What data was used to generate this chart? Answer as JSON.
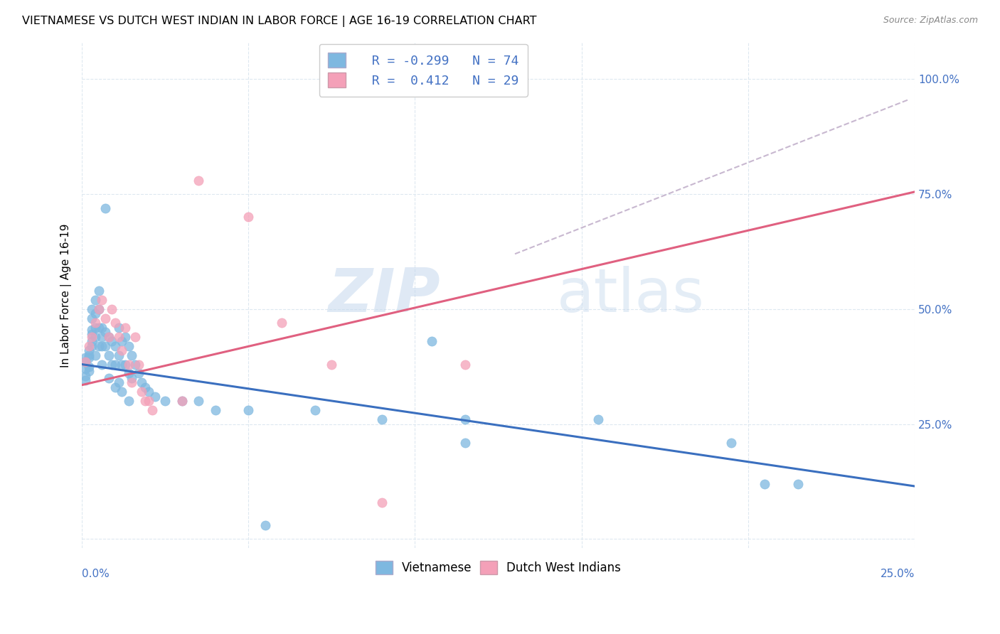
{
  "title": "VIETNAMESE VS DUTCH WEST INDIAN IN LABOR FORCE | AGE 16-19 CORRELATION CHART",
  "source": "Source: ZipAtlas.com",
  "ylabel": "In Labor Force | Age 16-19",
  "xlim": [
    0.0,
    0.25
  ],
  "ylim": [
    -0.02,
    1.08
  ],
  "watermark_zip": "ZIP",
  "watermark_atlas": "atlas",
  "blue_color": "#7eb8e0",
  "pink_color": "#f4a0b8",
  "blue_line_color": "#3a6fbf",
  "pink_line_color": "#e06080",
  "dash_color": "#c8b8d0",
  "blue_scatter": [
    [
      0.001,
      0.385
    ],
    [
      0.001,
      0.37
    ],
    [
      0.001,
      0.355
    ],
    [
      0.001,
      0.345
    ],
    [
      0.001,
      0.395
    ],
    [
      0.002,
      0.4
    ],
    [
      0.002,
      0.375
    ],
    [
      0.002,
      0.365
    ],
    [
      0.002,
      0.395
    ],
    [
      0.002,
      0.41
    ],
    [
      0.003,
      0.42
    ],
    [
      0.003,
      0.43
    ],
    [
      0.003,
      0.445
    ],
    [
      0.003,
      0.455
    ],
    [
      0.003,
      0.48
    ],
    [
      0.003,
      0.5
    ],
    [
      0.004,
      0.52
    ],
    [
      0.004,
      0.49
    ],
    [
      0.004,
      0.46
    ],
    [
      0.004,
      0.44
    ],
    [
      0.004,
      0.4
    ],
    [
      0.005,
      0.54
    ],
    [
      0.005,
      0.5
    ],
    [
      0.005,
      0.46
    ],
    [
      0.005,
      0.42
    ],
    [
      0.006,
      0.46
    ],
    [
      0.006,
      0.44
    ],
    [
      0.006,
      0.42
    ],
    [
      0.006,
      0.38
    ],
    [
      0.007,
      0.45
    ],
    [
      0.007,
      0.42
    ],
    [
      0.007,
      0.72
    ],
    [
      0.008,
      0.44
    ],
    [
      0.008,
      0.4
    ],
    [
      0.008,
      0.35
    ],
    [
      0.009,
      0.43
    ],
    [
      0.009,
      0.38
    ],
    [
      0.01,
      0.42
    ],
    [
      0.01,
      0.38
    ],
    [
      0.01,
      0.33
    ],
    [
      0.011,
      0.46
    ],
    [
      0.011,
      0.4
    ],
    [
      0.011,
      0.34
    ],
    [
      0.012,
      0.43
    ],
    [
      0.012,
      0.38
    ],
    [
      0.012,
      0.32
    ],
    [
      0.013,
      0.44
    ],
    [
      0.013,
      0.38
    ],
    [
      0.014,
      0.42
    ],
    [
      0.014,
      0.36
    ],
    [
      0.014,
      0.3
    ],
    [
      0.015,
      0.4
    ],
    [
      0.015,
      0.35
    ],
    [
      0.016,
      0.38
    ],
    [
      0.017,
      0.36
    ],
    [
      0.018,
      0.34
    ],
    [
      0.019,
      0.33
    ],
    [
      0.02,
      0.32
    ],
    [
      0.022,
      0.31
    ],
    [
      0.025,
      0.3
    ],
    [
      0.03,
      0.3
    ],
    [
      0.035,
      0.3
    ],
    [
      0.04,
      0.28
    ],
    [
      0.05,
      0.28
    ],
    [
      0.055,
      0.03
    ],
    [
      0.07,
      0.28
    ],
    [
      0.09,
      0.26
    ],
    [
      0.105,
      0.43
    ],
    [
      0.115,
      0.26
    ],
    [
      0.115,
      0.21
    ],
    [
      0.155,
      0.26
    ],
    [
      0.195,
      0.21
    ],
    [
      0.205,
      0.12
    ],
    [
      0.215,
      0.12
    ]
  ],
  "pink_scatter": [
    [
      0.001,
      0.385
    ],
    [
      0.002,
      0.42
    ],
    [
      0.003,
      0.44
    ],
    [
      0.004,
      0.47
    ],
    [
      0.005,
      0.5
    ],
    [
      0.006,
      0.52
    ],
    [
      0.007,
      0.48
    ],
    [
      0.008,
      0.44
    ],
    [
      0.009,
      0.5
    ],
    [
      0.01,
      0.47
    ],
    [
      0.011,
      0.44
    ],
    [
      0.012,
      0.41
    ],
    [
      0.013,
      0.46
    ],
    [
      0.014,
      0.38
    ],
    [
      0.015,
      0.34
    ],
    [
      0.016,
      0.44
    ],
    [
      0.017,
      0.38
    ],
    [
      0.018,
      0.32
    ],
    [
      0.019,
      0.3
    ],
    [
      0.02,
      0.3
    ],
    [
      0.021,
      0.28
    ],
    [
      0.03,
      0.3
    ],
    [
      0.035,
      0.78
    ],
    [
      0.05,
      0.7
    ],
    [
      0.06,
      0.47
    ],
    [
      0.075,
      0.38
    ],
    [
      0.09,
      0.08
    ],
    [
      0.115,
      0.38
    ],
    [
      0.115,
      1.0
    ]
  ],
  "blue_line_x": [
    0.0,
    0.25
  ],
  "blue_line_y": [
    0.38,
    0.115
  ],
  "pink_line_x": [
    0.0,
    0.25
  ],
  "pink_line_y": [
    0.335,
    0.755
  ],
  "dash_line_x": [
    0.13,
    0.248
  ],
  "dash_line_y": [
    0.62,
    0.955
  ],
  "legend_entries": [
    {
      "r": "R = -0.299",
      "n": "N = 74"
    },
    {
      "r": "R =  0.412",
      "n": "N = 29"
    }
  ],
  "axis_color": "#4472c4",
  "grid_color": "#dde8f0",
  "title_fontsize": 11.5,
  "source_fontsize": 9,
  "tick_fontsize": 11,
  "ylabel_fontsize": 11
}
